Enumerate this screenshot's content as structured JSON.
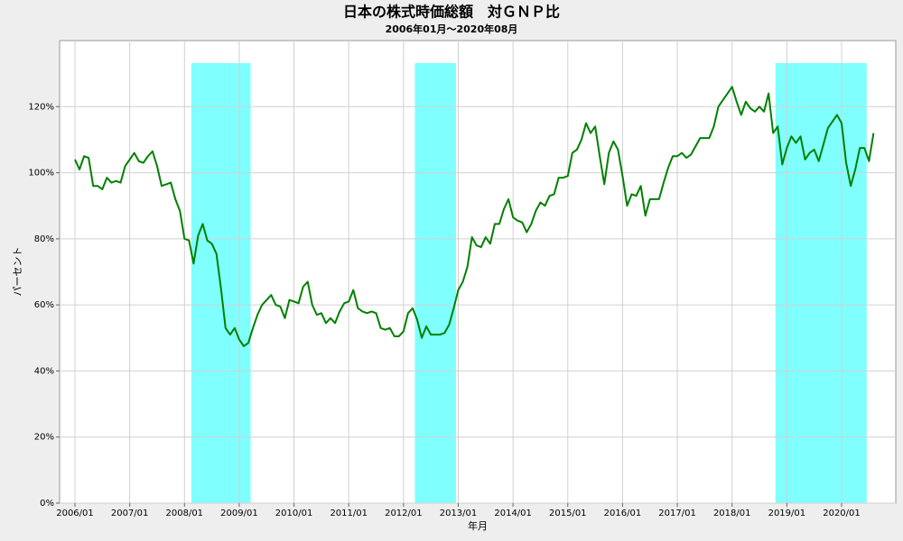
{
  "chart_data": {
    "type": "line",
    "title": "日本の株式時価総額　対ＧＮＰ比",
    "subtitle": "2006年01月～2020年08月",
    "x_label": "年月",
    "y_label": "パーセント",
    "categories": [
      "2006/01",
      null,
      null,
      null,
      null,
      null,
      null,
      null,
      null,
      null,
      null,
      null,
      "2007/01",
      null,
      null,
      null,
      null,
      null,
      null,
      null,
      null,
      null,
      null,
      null,
      "2008/01",
      null,
      null,
      null,
      null,
      null,
      null,
      null,
      null,
      null,
      null,
      null,
      "2009/01",
      null,
      null,
      null,
      null,
      null,
      null,
      null,
      null,
      null,
      null,
      null,
      "2010/01",
      null,
      null,
      null,
      null,
      null,
      null,
      null,
      null,
      null,
      null,
      null,
      "2011/01",
      null,
      null,
      null,
      null,
      null,
      null,
      null,
      null,
      null,
      null,
      null,
      "2012/01",
      null,
      null,
      null,
      null,
      null,
      null,
      null,
      null,
      null,
      null,
      null,
      "2013/01",
      null,
      null,
      null,
      null,
      null,
      null,
      null,
      null,
      null,
      null,
      null,
      "2014/01",
      null,
      null,
      null,
      null,
      null,
      null,
      null,
      null,
      null,
      null,
      null,
      "2015/01",
      null,
      null,
      null,
      null,
      null,
      null,
      null,
      null,
      null,
      null,
      null,
      "2016/01",
      null,
      null,
      null,
      null,
      null,
      null,
      null,
      null,
      null,
      null,
      null,
      "2017/01",
      null,
      null,
      null,
      null,
      null,
      null,
      null,
      null,
      null,
      null,
      null,
      "2018/01",
      null,
      null,
      null,
      null,
      null,
      null,
      null,
      null,
      null,
      null,
      null,
      "2019/01",
      null,
      null,
      null,
      null,
      null,
      null,
      null,
      null,
      null,
      null,
      null,
      "2020/01",
      null,
      null,
      null,
      null,
      null,
      null,
      null
    ],
    "series": [
      {
        "color": "#008000",
        "values": [
          104,
          101,
          105,
          104.5,
          96,
          96,
          95,
          98.5,
          97,
          97.5,
          97,
          102,
          104,
          106,
          103.5,
          103,
          105,
          106.5,
          102,
          96,
          96.5,
          97,
          92,
          88.5,
          80,
          79.5,
          72.5,
          81,
          84.5,
          79.5,
          78.5,
          75.5,
          65,
          53,
          51,
          53,
          49.5,
          47.5,
          48.5,
          53,
          57,
          60,
          61.5,
          63,
          60,
          59.5,
          56,
          61.5,
          61,
          60.5,
          65.5,
          67,
          60,
          57,
          57.5,
          54.5,
          56,
          54.5,
          58,
          60.5,
          61,
          64.5,
          59,
          58,
          57.5,
          58,
          57.5,
          53,
          52.5,
          53,
          50.5,
          50.5,
          52,
          57.5,
          59,
          55.5,
          50,
          53.5,
          51,
          51,
          51,
          51.5,
          54,
          59,
          64.5,
          67,
          71.5,
          80.5,
          78,
          77.5,
          80.5,
          78.5,
          84.5,
          84.5,
          89,
          92,
          86.5,
          85.5,
          85,
          82,
          84.5,
          88.5,
          91,
          90,
          93,
          93.5,
          98.5,
          98.5,
          99,
          106,
          107,
          110,
          115,
          112,
          114,
          105,
          96.5,
          106,
          109.5,
          107,
          99,
          90,
          93.5,
          93,
          96,
          87,
          92,
          92,
          92,
          97,
          101.5,
          105,
          105,
          106,
          104.5,
          105.5,
          108,
          110.5,
          110.5,
          110.5,
          114,
          120,
          122,
          124,
          126,
          121.5,
          117.5,
          121.5,
          119.5,
          118.5,
          120,
          118.5,
          124,
          112,
          114,
          102.5,
          107.5,
          111,
          109,
          111,
          104,
          106,
          107,
          103.5,
          108.5,
          113.5,
          115.5,
          117.5,
          115,
          103,
          96,
          101,
          107.5,
          107.5,
          103.5,
          112
        ]
      }
    ],
    "shaded": [
      {
        "start": "2008/03",
        "end": "2009/03",
        "color": "#80ffff"
      },
      {
        "start": "2012/04",
        "end": "2012/12",
        "color": "#80ffff"
      },
      {
        "start": "2018/11",
        "end": "2020/06",
        "color": "#80ffff"
      }
    ],
    "ylim": [
      0,
      140
    ],
    "yticks": [
      {
        "value": 0,
        "label": "0%"
      },
      {
        "value": 20,
        "label": "20%"
      },
      {
        "value": 40,
        "label": "40%"
      },
      {
        "value": 60,
        "label": "60%"
      },
      {
        "value": 80,
        "label": "80%"
      },
      {
        "value": 100,
        "label": "100%"
      },
      {
        "value": 120,
        "label": "120%"
      }
    ],
    "grid": true
  }
}
